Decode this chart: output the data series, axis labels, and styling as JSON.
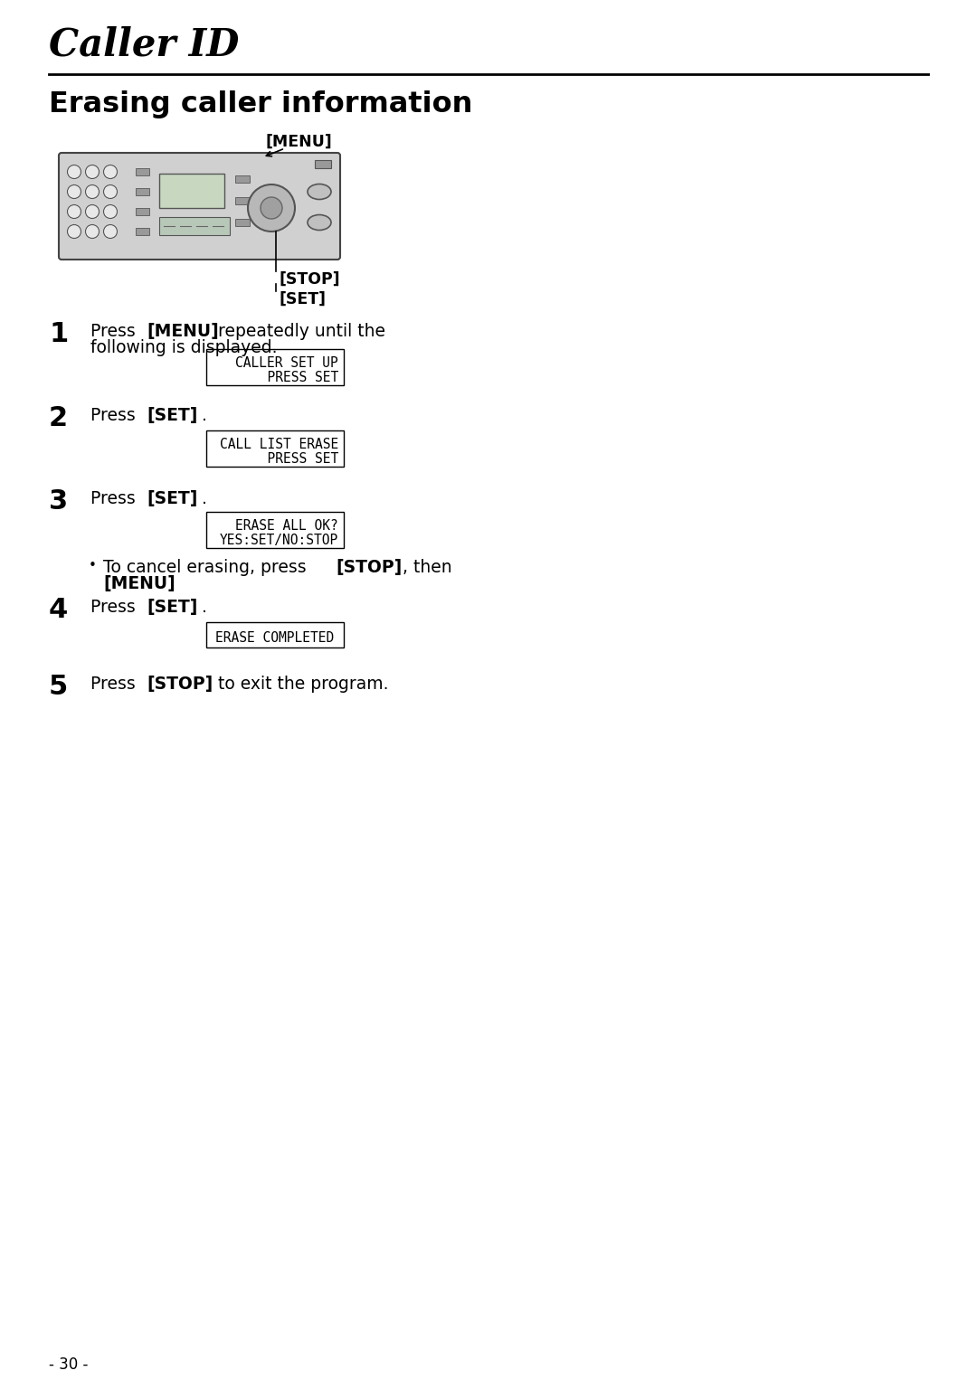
{
  "page_title": "Caller ID",
  "section_title": "Erasing caller information",
  "background_color": "#ffffff",
  "text_color": "#000000",
  "page_number": "- 30 -",
  "steps": [
    {
      "num": "1",
      "line1_pre": "Press ",
      "line1_bold": "[MENU]",
      "line1_post": " repeatedly until the",
      "line2": "following is displayed.",
      "display_lines": [
        "CALLER SET UP",
        "      PRESS SET"
      ],
      "has_bullet": false
    },
    {
      "num": "2",
      "line1_pre": "Press ",
      "line1_bold": "[SET]",
      "line1_post": ".",
      "line2": null,
      "display_lines": [
        "CALL LIST ERASE",
        "      PRESS SET"
      ],
      "has_bullet": false
    },
    {
      "num": "3",
      "line1_pre": "Press ",
      "line1_bold": "[SET]",
      "line1_post": ".",
      "line2": null,
      "display_lines": [
        "ERASE ALL OK?",
        "YES:SET/NO:STOP"
      ],
      "has_bullet": true
    },
    {
      "num": "4",
      "line1_pre": "Press ",
      "line1_bold": "[SET]",
      "line1_post": ".",
      "line2": null,
      "display_lines": [
        "ERASE COMPLETED"
      ],
      "has_bullet": false
    },
    {
      "num": "5",
      "line1_pre": "Press ",
      "line1_bold": "[STOP]",
      "line1_post": " to exit the program.",
      "line2": null,
      "display_lines": [],
      "has_bullet": false
    }
  ]
}
